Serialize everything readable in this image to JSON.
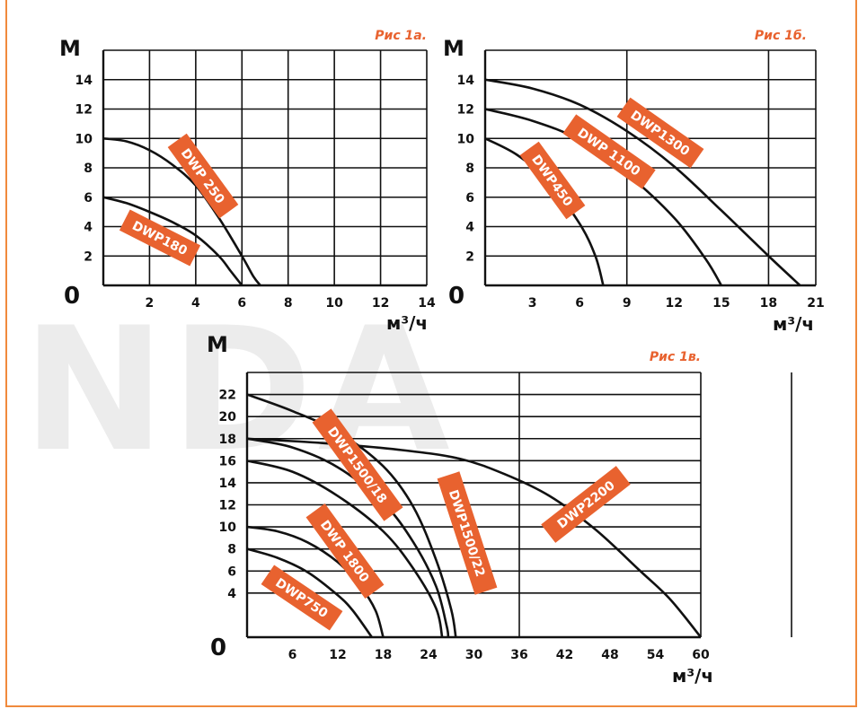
{
  "watermark": "NDA",
  "chart_data": [
    {
      "type": "line",
      "title": "Рис 1а.",
      "ylabel": "М",
      "xlabel": "м³/ч",
      "xlim": [
        0,
        14
      ],
      "ylim": [
        0,
        16
      ],
      "x_ticks": [
        2,
        4,
        6,
        8,
        10,
        12,
        14
      ],
      "y_ticks": [
        2,
        4,
        6,
        8,
        10,
        12,
        14
      ],
      "origin_label": "0",
      "grid": true,
      "series": [
        {
          "name": "DWP 250",
          "points": [
            [
              0,
              10
            ],
            [
              1,
              9.8
            ],
            [
              2,
              9.2
            ],
            [
              3,
              8.2
            ],
            [
              4,
              6.8
            ],
            [
              5,
              4.6
            ],
            [
              6,
              2.0
            ],
            [
              6.5,
              0.6
            ],
            [
              6.8,
              0
            ]
          ]
        },
        {
          "name": "DWP180",
          "points": [
            [
              0,
              6
            ],
            [
              1,
              5.6
            ],
            [
              2,
              5.0
            ],
            [
              3,
              4.3
            ],
            [
              4,
              3.4
            ],
            [
              5,
              2.0
            ],
            [
              5.5,
              1.0
            ],
            [
              6,
              0
            ]
          ]
        }
      ],
      "series_labels": [
        {
          "text": "DWP 250",
          "series": "DWP 250"
        },
        {
          "text": "DWP180",
          "series": "DWP180"
        }
      ]
    },
    {
      "type": "line",
      "title": "Рис 1б.",
      "ylabel": "М",
      "xlabel": "м³/ч",
      "xlim": [
        0,
        21
      ],
      "ylim": [
        0,
        16
      ],
      "x_ticks": [
        3,
        6,
        9,
        12,
        15,
        18,
        21
      ],
      "y_ticks": [
        2,
        4,
        6,
        8,
        10,
        12,
        14
      ],
      "origin_label": "0",
      "grid": true,
      "series": [
        {
          "name": "DWP1300",
          "points": [
            [
              0,
              14
            ],
            [
              3,
              13.4
            ],
            [
              6,
              12.3
            ],
            [
              9,
              10.5
            ],
            [
              12,
              8.1
            ],
            [
              15,
              5.1
            ],
            [
              18,
              2.0
            ],
            [
              20,
              0
            ]
          ]
        },
        {
          "name": "DWP 1100",
          "points": [
            [
              0,
              12
            ],
            [
              3,
              11.2
            ],
            [
              6,
              9.9
            ],
            [
              9,
              7.6
            ],
            [
              12,
              4.6
            ],
            [
              14,
              1.8
            ],
            [
              15,
              0
            ]
          ]
        },
        {
          "name": "DWP450",
          "points": [
            [
              0,
              10
            ],
            [
              2,
              8.9
            ],
            [
              4,
              7.1
            ],
            [
              6,
              4.2
            ],
            [
              7,
              2.0
            ],
            [
              7.5,
              0
            ]
          ]
        }
      ],
      "series_labels": [
        {
          "text": "DWP1300",
          "series": "DWP1300"
        },
        {
          "text": "DWP 1100",
          "series": "DWP 1100"
        },
        {
          "text": "DWP450",
          "series": "DWP450"
        }
      ]
    },
    {
      "type": "line",
      "title": "Рис 1в.",
      "ylabel": "М",
      "xlabel": "м³/ч",
      "xlim": [
        0,
        60
      ],
      "ylim": [
        0,
        24
      ],
      "x_ticks": [
        6,
        12,
        18,
        24,
        30,
        36,
        42,
        48,
        54,
        60
      ],
      "y_ticks": [
        4,
        6,
        8,
        10,
        12,
        14,
        16,
        18,
        20,
        22
      ],
      "origin_label": "0",
      "grid": true,
      "series": [
        {
          "name": "DWP2200",
          "points": [
            [
              0,
              18
            ],
            [
              10,
              17.6
            ],
            [
              20,
              17.0
            ],
            [
              28,
              16.2
            ],
            [
              34,
              14.8
            ],
            [
              40,
              12.8
            ],
            [
              46,
              9.8
            ],
            [
              52,
              6.0
            ],
            [
              56,
              3.4
            ],
            [
              60,
              0
            ]
          ]
        },
        {
          "name": "DWP1500/22",
          "points": [
            [
              0,
              22
            ],
            [
              6,
              20.5
            ],
            [
              12,
              18.6
            ],
            [
              18,
              15.5
            ],
            [
              22,
              11.8
            ],
            [
              25,
              7.0
            ],
            [
              27,
              2.5
            ],
            [
              27.6,
              0
            ]
          ]
        },
        {
          "name": "DWP1500/18",
          "points": [
            [
              0,
              18
            ],
            [
              6,
              17.2
            ],
            [
              12,
              15.4
            ],
            [
              18,
              12.2
            ],
            [
              22,
              8.6
            ],
            [
              25,
              4.6
            ],
            [
              26.4,
              1.0
            ],
            [
              26.6,
              0
            ]
          ]
        },
        {
          "name": "DWP 1800",
          "points": [
            [
              0,
              16
            ],
            [
              6,
              15.0
            ],
            [
              12,
              12.8
            ],
            [
              18,
              9.6
            ],
            [
              22,
              6.2
            ],
            [
              25,
              2.6
            ],
            [
              25.8,
              0
            ]
          ]
        },
        {
          "name": "DWP750",
          "points": [
            [
              0,
              10
            ],
            [
              4,
              9.6
            ],
            [
              8,
              8.6
            ],
            [
              12,
              6.8
            ],
            [
              15,
              4.6
            ],
            [
              17,
              2.4
            ],
            [
              18,
              0
            ]
          ]
        },
        {
          "name": "DWP750",
          "points": [
            [
              0,
              8
            ],
            [
              4,
              7.2
            ],
            [
              8,
              5.9
            ],
            [
              12,
              3.8
            ],
            [
              14,
              2.4
            ],
            [
              16.5,
              0
            ]
          ]
        }
      ],
      "series_labels": [
        {
          "text": "DWP1500/18",
          "series": "DWP1500/18"
        },
        {
          "text": "DWP1500/22",
          "series": "DWP1500/22"
        },
        {
          "text": "DWP2200",
          "series": "DWP2200"
        },
        {
          "text": "DWP 1800",
          "series": "DWP 1800"
        },
        {
          "text": "DWP750",
          "series": "DWP750"
        }
      ]
    }
  ],
  "colors": {
    "curve": "#111111",
    "grid": "#111111",
    "label_fill": "#e8622f",
    "title": "#e8622f",
    "frame": "#f08a3c",
    "watermark": "#ececec"
  }
}
